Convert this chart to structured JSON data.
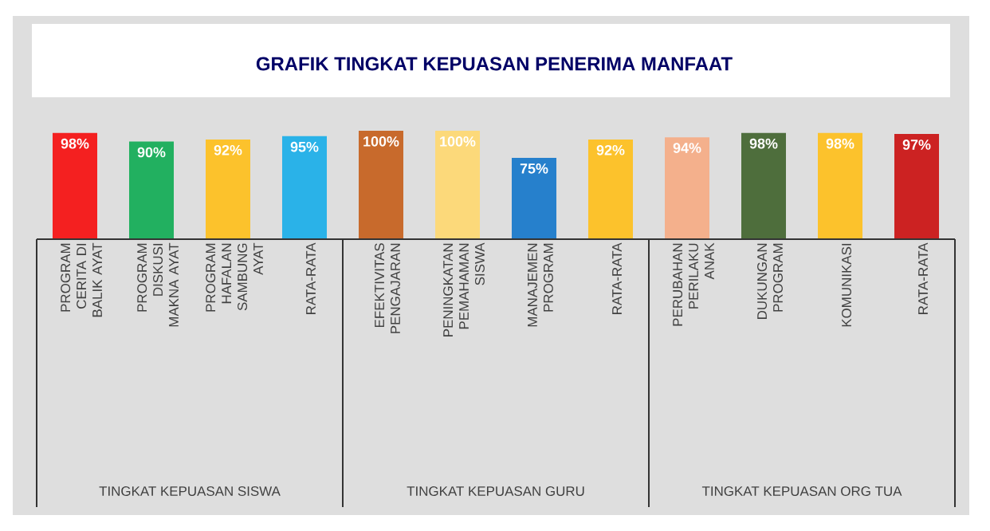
{
  "chart_data": {
    "type": "bar",
    "title": "GRAFIK TINGKAT KEPUASAN PENERIMA MANFAAT",
    "categories": [
      "PROGRAM CERITA DI BALIK AYAT",
      "PROGRAM DISKUSI MAKNA AYAT",
      "PROGRAM HAFALAN SAMBUNG AYAT",
      "RATA-RATA",
      "EFEKTIVITAS PENGAJARAN",
      "PENINGKATAN PEMAHAMAN SISWA",
      "MANAJEMEN PROGRAM",
      "RATA-RATA",
      "PERUBAHAN PERILAKU ANAK",
      "DUKUNGAN PROGRAM",
      "KOMUNIKASI",
      "RATA-RATA"
    ],
    "values": [
      98,
      90,
      92,
      95,
      100,
      100,
      75,
      92,
      94,
      98,
      98,
      97
    ],
    "value_labels": [
      "98%",
      "90%",
      "92%",
      "95%",
      "100%",
      "100%",
      "75%",
      "92%",
      "94%",
      "98%",
      "98%",
      "97%"
    ],
    "colors": [
      "#f42020",
      "#22b060",
      "#fcc22c",
      "#2ab2e8",
      "#c86a2c",
      "#fcd97a",
      "#2680cc",
      "#fcc22c",
      "#f4b08c",
      "#4e6e3c",
      "#fcc22c",
      "#cc2222"
    ],
    "annotations": [
      "TINGKAT KEPUASAN SISWA",
      "TINGKAT KEPUASAN GURU",
      "TINGKAT KEPUASAN ORG TUA"
    ],
    "ylim": [
      0,
      100
    ]
  }
}
